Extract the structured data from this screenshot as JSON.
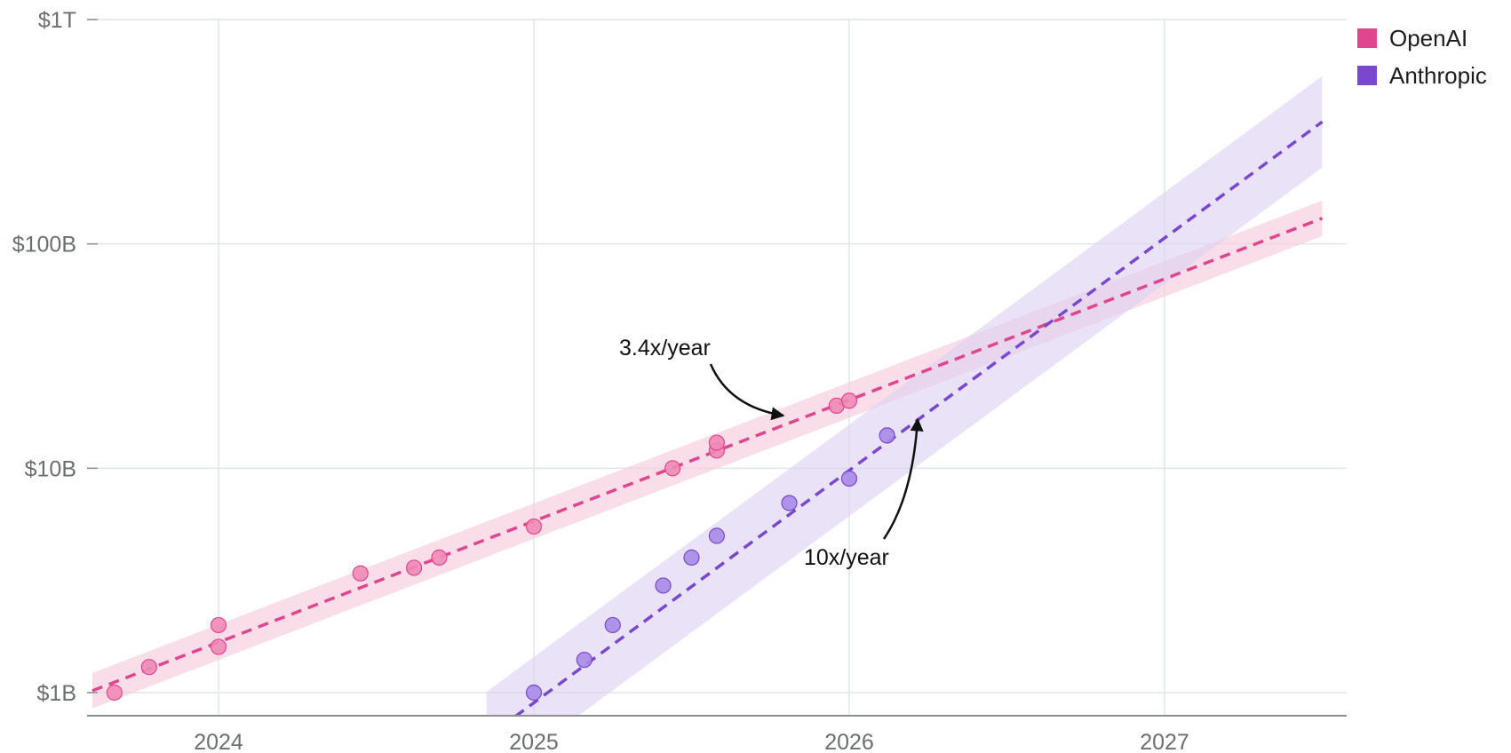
{
  "chart_data": {
    "type": "scatter",
    "title": "",
    "xlabel": "",
    "ylabel": "",
    "y_scale": "log",
    "ylim": [
      1000000000.0,
      1000000000000.0
    ],
    "xlim": [
      2023.6,
      2027.58
    ],
    "y_ticks": [
      {
        "value": 1000000000.0,
        "label": "$1B"
      },
      {
        "value": 10000000000.0,
        "label": "$10B"
      },
      {
        "value": 100000000000.0,
        "label": "$100B"
      },
      {
        "value": 1000000000000.0,
        "label": "$1T"
      }
    ],
    "x_ticks": [
      {
        "value": 2024,
        "label": "2024"
      },
      {
        "value": 2025,
        "label": "2025"
      },
      {
        "value": 2026,
        "label": "2026"
      },
      {
        "value": 2027,
        "label": "2027"
      }
    ],
    "grid": true,
    "legend_position": "top-right",
    "series": [
      {
        "name": "OpenAI",
        "color": "#e0458f",
        "point_color": "#f08ab6",
        "band_color": "#f6c9dd",
        "points": [
          {
            "x": 2023.67,
            "y": 1000000000.0
          },
          {
            "x": 2023.78,
            "y": 1300000000.0
          },
          {
            "x": 2024.0,
            "y": 2000000000.0
          },
          {
            "x": 2024.0,
            "y": 1600000000.0
          },
          {
            "x": 2024.45,
            "y": 3400000000.0
          },
          {
            "x": 2024.62,
            "y": 3600000000.0
          },
          {
            "x": 2024.7,
            "y": 4000000000.0
          },
          {
            "x": 2025.0,
            "y": 5500000000.0
          },
          {
            "x": 2025.44,
            "y": 10000000000.0
          },
          {
            "x": 2025.58,
            "y": 12000000000.0
          },
          {
            "x": 2025.58,
            "y": 13000000000.0
          },
          {
            "x": 2025.96,
            "y": 19000000000.0
          },
          {
            "x": 2026.0,
            "y": 20000000000.0
          }
        ],
        "trend": {
          "x_start": 2023.6,
          "y_start": 1020000000.0,
          "x_end": 2027.5,
          "y_end": 130000000000.0,
          "growth_label": "3.4x/year"
        },
        "band_ratio": 1.2
      },
      {
        "name": "Anthropic",
        "color": "#7a48cf",
        "point_color": "#a98ae6",
        "band_color": "#ddd2f2",
        "points": [
          {
            "x": 2025.0,
            "y": 1000000000.0
          },
          {
            "x": 2025.16,
            "y": 1400000000.0
          },
          {
            "x": 2025.25,
            "y": 2000000000.0
          },
          {
            "x": 2025.41,
            "y": 3000000000.0
          },
          {
            "x": 2025.5,
            "y": 4000000000.0
          },
          {
            "x": 2025.58,
            "y": 5000000000.0
          },
          {
            "x": 2025.81,
            "y": 7000000000.0
          },
          {
            "x": 2026.0,
            "y": 9000000000.0
          },
          {
            "x": 2026.12,
            "y": 14000000000.0
          }
        ],
        "trend": {
          "x_start": 2024.85,
          "y_start": 630000000.0,
          "x_end": 2027.5,
          "y_end": 350000000000.0,
          "growth_label": "10x/year"
        },
        "band_ratio": 1.6
      }
    ]
  },
  "legend": {
    "items": [
      {
        "label": "OpenAI",
        "color": "#e0458f"
      },
      {
        "label": "Anthropic",
        "color": "#7a48cf"
      }
    ]
  },
  "annotations": {
    "openai_growth": "3.4x/year",
    "anthropic_growth": "10x/year"
  }
}
